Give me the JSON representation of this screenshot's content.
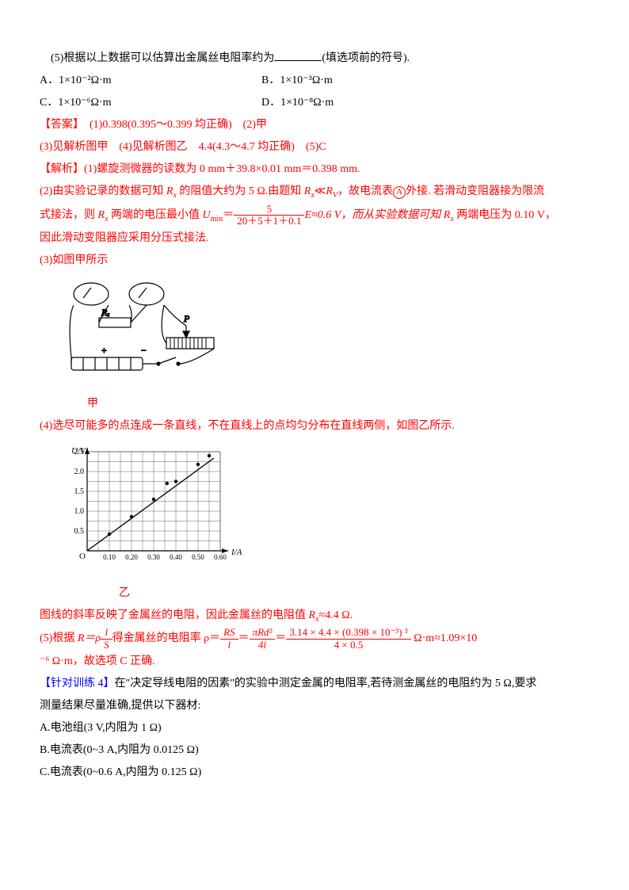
{
  "q5": {
    "text": "(5)根据以上数据可以估算出金属丝电阻率约为",
    "tail": "(填选项前的符号)."
  },
  "options": {
    "A": "A．1×10⁻²Ω·m",
    "B": "B．1×10⁻³Ω·m",
    "C": "C．1×10⁻⁶Ω·m",
    "D": "D．1×10⁻⁸Ω·m"
  },
  "answer": {
    "label": "【答案】",
    "a1": "(1)0.398(0.395～0.399 均正确)　(2)甲",
    "a2": "(3)见解析图甲　(4)见解析图乙　4.4(4.3～4.7 均正确)　(5)C"
  },
  "explain": {
    "label": "【解析】",
    "e1": "(1)螺旋测微器的读数为 0 mm＋39.8×0.01 mm＝0.398 mm.",
    "e2_pre": "(2)由实验记录的数据可知 ",
    "e2_a": " 的阻值大约为 5 Ω.由题知 ",
    "e2_b": "≪",
    "e2_c": "，故电流表",
    "e2_d": "外接. 若滑动变阻器接为限流",
    "e2_line2a": "式接法，则 ",
    "e2_line2b": " 两端的电压最小值 ",
    "e2_umin": "U",
    "e2_min": "min",
    "e2_eq": "＝",
    "frac1": {
      "num": "5",
      "den": "20＋5＋1＋0.1"
    },
    "e2_after": "E≈0.6 V，而从实验数据可知 ",
    "e2_tail": " 两端电压为 0.10 V，",
    "e2_line3": "因此滑动变阻器应采用分压式接法.",
    "e3": "(3)如图甲所示",
    "caption1": "甲",
    "e4": "(4)选尽可能多的点连成一条直线，不在直线上的点均匀分布在直线两侧，如图乙所示.",
    "caption2": "乙",
    "e4b": "图线的斜率反映了金属丝的电阻，因此金属丝的电阻值 ",
    "e4c": "≈4.4 Ω.",
    "e5a": "(5)根据 ",
    "e5req": "R＝ρ",
    "frac_ls": {
      "num": "l",
      "den": "S"
    },
    "e5b": "得金属丝的电阻率 ρ＝",
    "frac_rs": {
      "num": "RS",
      "den": "l"
    },
    "e5c": "＝",
    "frac_pi": {
      "num": "πRd²",
      "den": "4l"
    },
    "e5d": "＝",
    "frac_big": {
      "num": "3.14 × 4.4 × (0.398 × 10⁻³) ²",
      "den": "4 × 0.5"
    },
    "e5e": " Ω·m≈1.09×10",
    "e5f": "⁻⁶ Ω·m，故选项 C 正确."
  },
  "drill": {
    "label": "【针对训练 4】",
    "text": "在\"决定导线电阻的因素\"的实验中测定金属的电阻率,若待测金属丝的电阻约为 5 Ω,要求",
    "line2": "测量结果尽量准确,提供以下器材:",
    "A": "A.电池组(3 V,内阻为 1 Ω)",
    "B": "B.电流表(0~3 A,内阻为 0.0125 Ω)",
    "C": "C.电流表(0~0.6 A,内阻为 0.125 Ω)"
  },
  "graph": {
    "ylabel": "U/V",
    "xlabel": "I/A",
    "yticks": [
      "0.5",
      "1.0",
      "1.5",
      "2.0",
      "2.5"
    ],
    "xticks": [
      "0.10",
      "0.20",
      "0.30",
      "0.40",
      "0.50",
      "0.60"
    ],
    "points": [
      [
        0.1,
        0.42
      ],
      [
        0.2,
        0.86
      ],
      [
        0.3,
        1.3
      ],
      [
        0.36,
        1.7
      ],
      [
        0.4,
        1.75
      ],
      [
        0.5,
        2.18
      ],
      [
        0.55,
        2.4
      ]
    ],
    "origin": "O"
  }
}
